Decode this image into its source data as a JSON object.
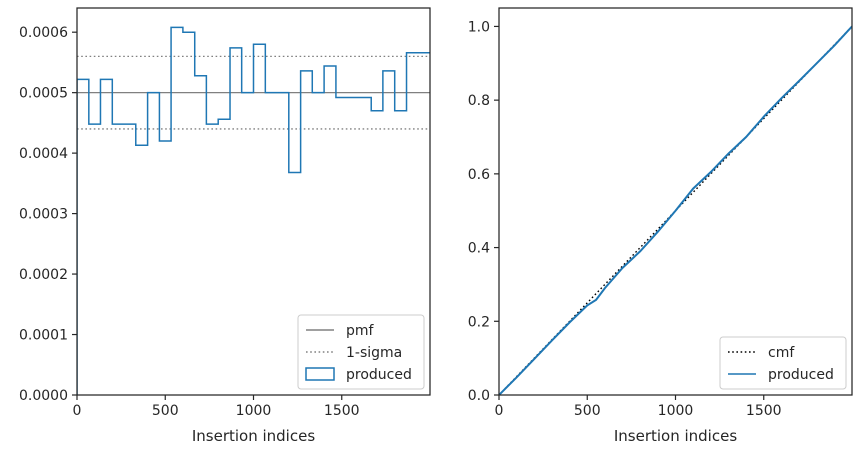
{
  "chart_data": [
    {
      "type": "histogram-step",
      "xlabel": "Insertion indices",
      "ylabel": "",
      "xlim": [
        0,
        2000
      ],
      "ylim": [
        0,
        0.00064
      ],
      "xticks": [
        0,
        500,
        1000,
        1500
      ],
      "xtick_labels": [
        "0",
        "500",
        "1000",
        "1500"
      ],
      "yticks": [
        0,
        0.0001,
        0.0002,
        0.0003,
        0.0004,
        0.0005,
        0.0006
      ],
      "ytick_labels": [
        "0.0000",
        "0.0001",
        "0.0002",
        "0.0003",
        "0.0004",
        "0.0005",
        "0.0006"
      ],
      "grid": false,
      "legend_position": "lower right",
      "series": [
        {
          "name": "pmf",
          "kind": "hline",
          "y": 0.0005,
          "color": "#808080",
          "style": "solid"
        },
        {
          "name": "1-sigma",
          "kind": "hlines",
          "y": [
            0.00056,
            0.00044
          ],
          "color": "#808080",
          "style": "dotted"
        },
        {
          "name": "produced",
          "kind": "step",
          "color": "#1f77b4",
          "bin_edges": [
            0,
            67,
            133,
            200,
            267,
            333,
            400,
            467,
            533,
            600,
            667,
            733,
            800,
            867,
            933,
            1000,
            1067,
            1133,
            1200,
            1267,
            1333,
            1400,
            1467,
            1533,
            1600,
            1667,
            1733,
            1800,
            1867,
            1933,
            2000
          ],
          "values": [
            0.000522,
            0.000448,
            0.000522,
            0.000448,
            0.000448,
            0.000413,
            0.0005,
            0.00042,
            0.000608,
            0.0006,
            0.000528,
            0.000448,
            0.000456,
            0.000574,
            0.0005,
            0.00058,
            0.0005,
            0.0005,
            0.000368,
            0.000536,
            0.0005,
            0.000544,
            0.000492,
            0.000492,
            0.000492,
            0.00047,
            0.000536,
            0.00047,
            0.000566,
            0.000566
          ]
        }
      ]
    },
    {
      "type": "line",
      "xlabel": "Insertion indices",
      "ylabel": "",
      "xlim": [
        0,
        2000
      ],
      "ylim": [
        0,
        1.05
      ],
      "xticks": [
        0,
        500,
        1000,
        1500
      ],
      "xtick_labels": [
        "0",
        "500",
        "1000",
        "1500"
      ],
      "yticks": [
        0.0,
        0.2,
        0.4,
        0.6,
        0.8,
        1.0
      ],
      "ytick_labels": [
        "0.0",
        "0.2",
        "0.4",
        "0.6",
        "0.8",
        "1.0"
      ],
      "grid": false,
      "legend_position": "lower right",
      "series": [
        {
          "name": "cmf",
          "style": "dotted",
          "color": "#000000",
          "x": [
            0,
            2000
          ],
          "y": [
            0,
            1.0
          ]
        },
        {
          "name": "produced",
          "style": "solid",
          "color": "#1f77b4",
          "x": [
            0,
            100,
            200,
            300,
            400,
            500,
            550,
            600,
            700,
            800,
            900,
            1000,
            1100,
            1200,
            1300,
            1400,
            1500,
            1600,
            1700,
            1800,
            1900,
            2000
          ],
          "y": [
            0,
            0.048,
            0.098,
            0.148,
            0.197,
            0.243,
            0.258,
            0.29,
            0.345,
            0.39,
            0.443,
            0.5,
            0.56,
            0.605,
            0.655,
            0.7,
            0.755,
            0.805,
            0.852,
            0.9,
            0.948,
            1.0
          ]
        }
      ]
    }
  ]
}
